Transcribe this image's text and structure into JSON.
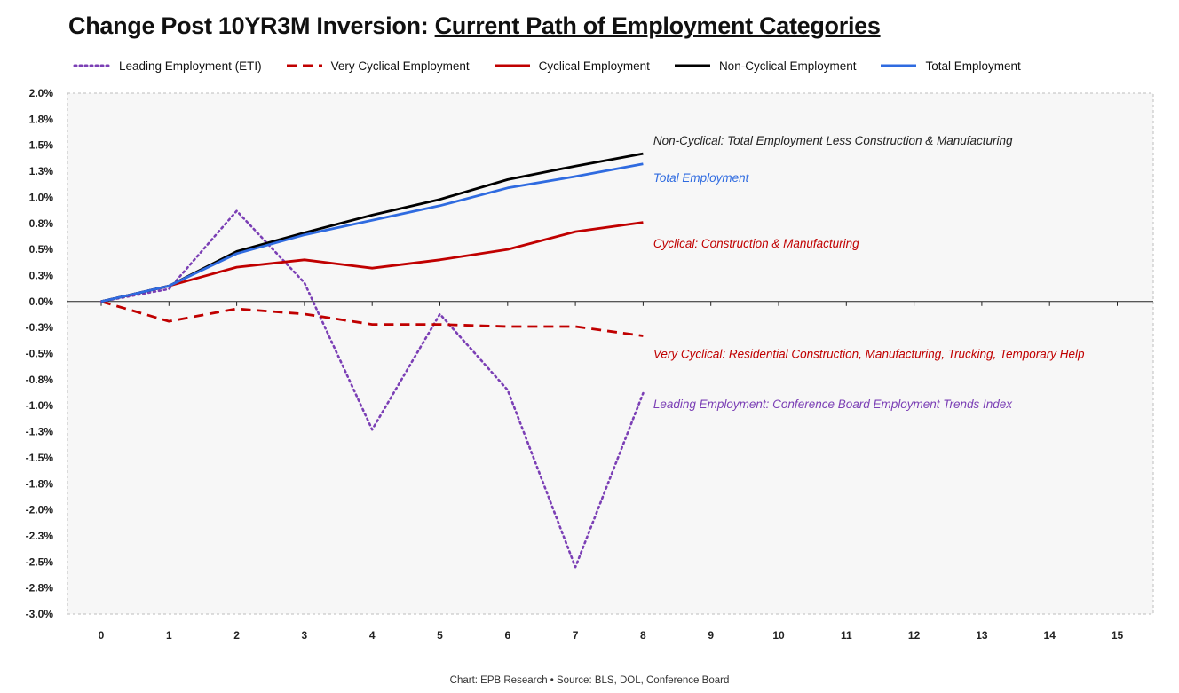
{
  "chart_data": {
    "type": "line",
    "title_prefix": "Change Post 10YR3M Inversion: ",
    "title_underlined": "Current Path of Employment Categories",
    "x": [
      0,
      1,
      2,
      3,
      4,
      5,
      6,
      7,
      8
    ],
    "x_ticks": [
      "0",
      "1",
      "2",
      "3",
      "4",
      "5",
      "6",
      "7",
      "8",
      "9",
      "10",
      "11",
      "12",
      "13",
      "14",
      "15"
    ],
    "xlim": [
      0,
      15
    ],
    "ylim": [
      -3.0,
      2.0
    ],
    "y_ticks": [
      {
        "v": 2.0,
        "label": "2.0%"
      },
      {
        "v": 1.75,
        "label": "1.8%"
      },
      {
        "v": 1.5,
        "label": "1.5%"
      },
      {
        "v": 1.25,
        "label": "1.3%"
      },
      {
        "v": 1.0,
        "label": "1.0%"
      },
      {
        "v": 0.75,
        "label": "0.8%"
      },
      {
        "v": 0.5,
        "label": "0.5%"
      },
      {
        "v": 0.25,
        "label": "0.3%"
      },
      {
        "v": 0.0,
        "label": "0.0%"
      },
      {
        "v": -0.25,
        "label": "-0.3%"
      },
      {
        "v": -0.5,
        "label": "-0.5%"
      },
      {
        "v": -0.75,
        "label": "-0.8%"
      },
      {
        "v": -1.0,
        "label": "-1.0%"
      },
      {
        "v": -1.25,
        "label": "-1.3%"
      },
      {
        "v": -1.5,
        "label": "-1.5%"
      },
      {
        "v": -1.75,
        "label": "-1.8%"
      },
      {
        "v": -2.0,
        "label": "-2.0%"
      },
      {
        "v": -2.25,
        "label": "-2.3%"
      },
      {
        "v": -2.5,
        "label": "-2.5%"
      },
      {
        "v": -2.75,
        "label": "-2.8%"
      },
      {
        "v": -3.0,
        "label": "-3.0%"
      }
    ],
    "grid": false,
    "legend_position": "top",
    "series": [
      {
        "name": "Leading Employment (ETI)",
        "color": "#7B3FB5",
        "style": "dotted",
        "values": [
          0.0,
          0.12,
          0.87,
          0.18,
          -1.23,
          -0.12,
          -0.85,
          -2.55,
          -0.88
        ]
      },
      {
        "name": "Very Cyclical Employment",
        "color": "#C00000",
        "style": "dashed",
        "values": [
          0.0,
          -0.19,
          -0.07,
          -0.12,
          -0.22,
          -0.22,
          -0.24,
          -0.24,
          -0.33
        ]
      },
      {
        "name": "Cyclical Employment",
        "color": "#C00000",
        "style": "solid",
        "values": [
          0.0,
          0.15,
          0.33,
          0.4,
          0.32,
          0.4,
          0.5,
          0.67,
          0.76
        ]
      },
      {
        "name": "Non-Cyclical Employment",
        "color": "#000000",
        "style": "solid",
        "values": [
          0.0,
          0.15,
          0.48,
          0.66,
          0.83,
          0.98,
          1.17,
          1.3,
          1.42
        ]
      },
      {
        "name": "Total Employment",
        "color": "#2F6BE0",
        "style": "solid",
        "values": [
          0.0,
          0.15,
          0.46,
          0.64,
          0.78,
          0.92,
          1.09,
          1.2,
          1.32
        ]
      }
    ],
    "annotations": [
      {
        "text": "Non-Cyclical: Total Employment Less Construction & Manufacturing",
        "color": "#222222",
        "x": 8.15,
        "y": 1.55
      },
      {
        "text": "Total Employment",
        "color": "#2F6BE0",
        "x": 8.15,
        "y": 1.19
      },
      {
        "text": "Cyclical: Construction & Manufacturing",
        "color": "#C00000",
        "x": 8.15,
        "y": 0.56
      },
      {
        "text": "Very Cyclical: Residential Construction, Manufacturing, Trucking, Temporary Help",
        "color": "#C00000",
        "x": 8.15,
        "y": -0.5
      },
      {
        "text": "Leading Employment: Conference Board Employment Trends Index",
        "color": "#7B3FB5",
        "x": 8.15,
        "y": -0.98
      }
    ],
    "source": "Chart: EPB Research  •  Source: BLS, DOL, Conference Board"
  }
}
